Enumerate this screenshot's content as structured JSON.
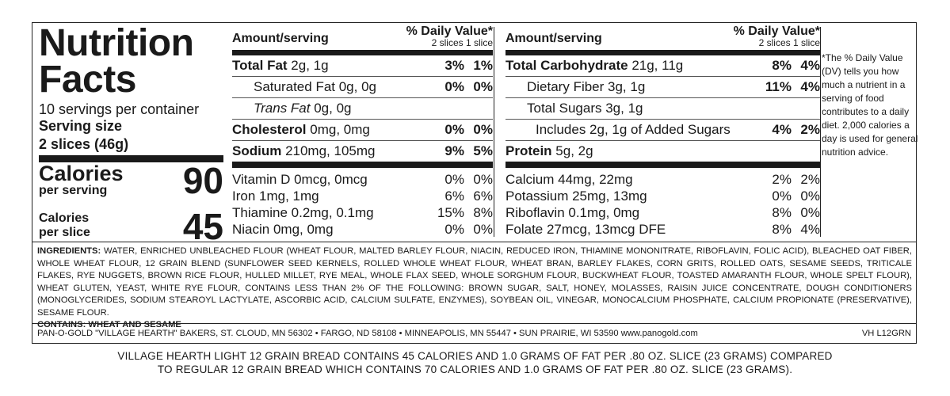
{
  "title": "Nutrition Facts",
  "servings_per_container": "10 servings per container",
  "serving_size_label": "Serving size",
  "serving_size_value": "2 slices (46g)",
  "calories": {
    "per_serving_label": "Calories",
    "per_serving_sub": "per serving",
    "per_serving_value": "90",
    "per_slice_label": "Calories",
    "per_slice_sub": "per slice",
    "per_slice_value": "45"
  },
  "header": {
    "amount": "Amount/serving",
    "dv": "% Daily Value*",
    "sub": "2 slices 1 slice"
  },
  "col2_rows": [
    {
      "bold": "Total Fat",
      "rest": " 2g, 1g",
      "d1": "3%",
      "d2": "1%"
    },
    {
      "rest": "Saturated Fat 0g, 0g",
      "d1": "0%",
      "d2": "0%"
    },
    {
      "italic": "Trans Fat",
      "rest": " 0g, 0g",
      "d1": "",
      "d2": ""
    },
    {
      "bold": "Cholesterol",
      "rest": " 0mg, 0mg",
      "d1": "0%",
      "d2": "0%"
    },
    {
      "bold": "Sodium",
      "rest": " 210mg, 105mg",
      "d1": "9%",
      "d2": "5%"
    }
  ],
  "col3_rows": [
    {
      "bold": "Total Carbohydrate",
      "rest": " 21g, 11g",
      "d1": "8%",
      "d2": "4%"
    },
    {
      "rest": "Dietary Fiber 3g, 1g",
      "d1": "11%",
      "d2": "4%"
    },
    {
      "rest": "Total Sugars 3g, 1g",
      "d1": "",
      "d2": ""
    },
    {
      "rest": "Includes 2g, 1g of Added Sugars",
      "d1": "4%",
      "d2": "2%"
    },
    {
      "bold": "Protein",
      "rest": " 5g, 2g",
      "d1": "",
      "d2": ""
    }
  ],
  "col2_vitamins": [
    {
      "name": "Vitamin D 0mcg, 0mcg",
      "d1": "0%",
      "d2": "0%"
    },
    {
      "name": "Iron 1mg, 1mg",
      "d1": "6%",
      "d2": "6%"
    },
    {
      "name": "Thiamine 0.2mg, 0.1mg",
      "d1": "15%",
      "d2": "8%"
    },
    {
      "name": "Niacin 0mg, 0mg",
      "d1": "0%",
      "d2": "0%"
    }
  ],
  "col3_vitamins": [
    {
      "name": "Calcium 44mg, 22mg",
      "d1": "2%",
      "d2": "2%"
    },
    {
      "name": "Potassium 25mg, 13mg",
      "d1": "0%",
      "d2": "0%"
    },
    {
      "name": "Riboflavin 0.1mg, 0mg",
      "d1": "8%",
      "d2": "0%"
    },
    {
      "name": "Folate 27mcg, 13mcg DFE",
      "d1": "8%",
      "d2": "4%"
    }
  ],
  "footnote": "*The % Daily Value (DV) tells you how much a nutrient in a serving of food contributes to a daily diet. 2,000 calories a day is used for general nutrition advice.",
  "ingredients_label": "INGREDIENTS:",
  "ingredients_text": "WATER, ENRICHED UNBLEACHED FLOUR (WHEAT FLOUR, MALTED BARLEY FLOUR, NIACIN, REDUCED IRON, THIAMINE MONONITRATE, RIBOFLAVIN, FOLIC ACID), BLEACHED OAT FIBER, WHOLE WHEAT FLOUR, 12 GRAIN BLEND (SUNFLOWER SEED KERNELS, ROLLED WHOLE WHEAT FLOUR, WHEAT BRAN, BARLEY FLAKES, CORN GRITS, ROLLED OATS, SESAME SEEDS, TRITICALE FLAKES, RYE NUGGETS, BROWN RICE FLOUR, HULLED MILLET, RYE MEAL, WHOLE FLAX SEED, WHOLE SORGHUM FLOUR, BUCKWHEAT FLOUR, TOASTED AMARANTH FLOUR, WHOLE SPELT FLOUR), WHEAT GLUTEN, YEAST, WHITE RYE FLOUR, CONTAINS LESS THAN 2% OF THE FOLLOWING: BROWN SUGAR, SALT, HONEY, MOLASSES, RAISIN JUICE CONCENTRATE, DOUGH CONDITIONERS (MONOGLYCERIDES, SODIUM STEAROYL LACTYLATE, ASCORBIC ACID, CALCIUM SULFATE, ENZYMES), SOYBEAN OIL, VINEGAR, MONOCALCIUM PHOSPHATE, CALCIUM PROPIONATE (PRESERVATIVE), SESAME FLOUR.",
  "contains": "CONTAINS: WHEAT AND SESAME",
  "manufacturer": "PAN-O-GOLD \"VILLAGE HEARTH\" BAKERS, ST. CLOUD, MN 56302 • FARGO, ND 58108 • MINNEAPOLIS, MN 55447 • SUN PRAIRIE, WI 53590 www.panogold.com",
  "code": "VH L12GRN",
  "comparison_line1": "VILLAGE HEARTH LIGHT 12 GRAIN BREAD CONTAINS 45 CALORIES AND 1.0 GRAMS OF FAT PER .80 OZ. SLICE (23 GRAMS) COMPARED",
  "comparison_line2": "TO REGULAR 12 GRAIN BREAD WHICH CONTAINS 70 CALORIES AND 1.0 GRAMS OF FAT PER .80 OZ. SLICE (23 GRAMS)."
}
